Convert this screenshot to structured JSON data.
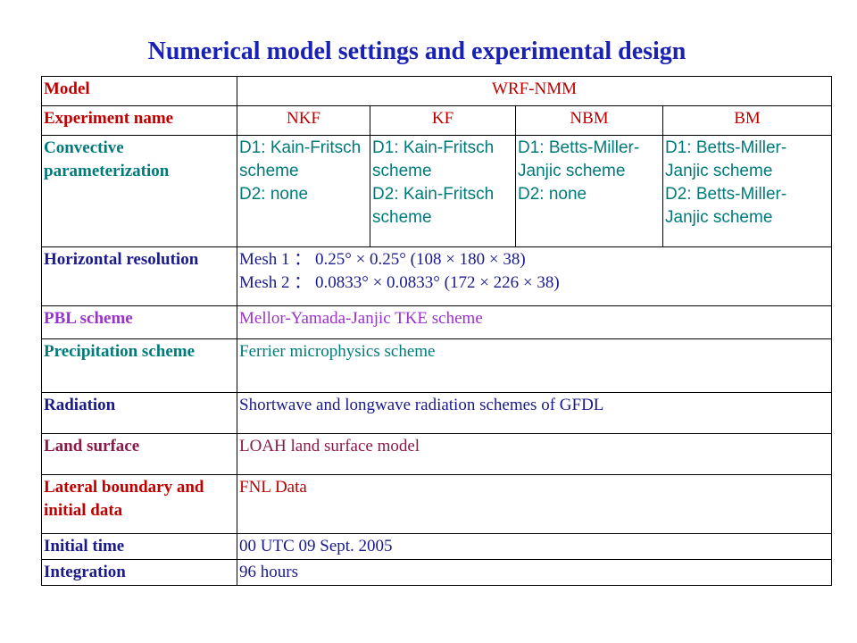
{
  "title": "Numerical model settings and experimental design",
  "rows": {
    "model": {
      "label": "Model",
      "value": "WRF-NMM"
    },
    "experiment": {
      "label": "Experiment name",
      "values": [
        "NKF",
        "KF",
        "NBM",
        "BM"
      ]
    },
    "convective": {
      "label": "Convective parameterization",
      "nkf": [
        "D1: Kain-Fritsch scheme",
        "D2: none"
      ],
      "kf": [
        "D1: Kain-Fritsch scheme",
        "D2: Kain-Fritsch scheme"
      ],
      "nbm": [
        "D1: Betts-Miller-Janjic scheme",
        "D2: none"
      ],
      "bm": [
        "D1: Betts-Miller-Janjic scheme",
        "D2: Betts-Miller-Janjic scheme"
      ]
    },
    "horizontal": {
      "label": "Horizontal resolution",
      "mesh1": "Mesh 1 ： 0.25° × 0.25° (108 × 180 × 38)",
      "mesh2": "Mesh 2 ： 0.0833° × 0.0833° (172 × 226 × 38)"
    },
    "pbl": {
      "label": "PBL scheme",
      "value": "Mellor-Yamada-Janjic TKE scheme"
    },
    "precip": {
      "label": "Precipitation scheme",
      "value": "Ferrier microphysics scheme"
    },
    "radiation": {
      "label": "Radiation",
      "value": "Shortwave and longwave radiation schemes of GFDL"
    },
    "land": {
      "label": "Land surface",
      "value": "LOAH land surface model"
    },
    "lateral": {
      "label": "Lateral boundary and initial data",
      "value": "FNL Data"
    },
    "initial_time": {
      "label": "Initial time",
      "value": "00 UTC 09 Sept. 2005"
    },
    "integration": {
      "label": "Integration",
      "value": "96 hours"
    }
  },
  "colors": {
    "title": "#1a21b5",
    "red": "#c00000",
    "teal": "#007a7a",
    "purple": "#9a32cd",
    "navy": "#1a1a8c",
    "maroon": "#8b1a4a"
  }
}
